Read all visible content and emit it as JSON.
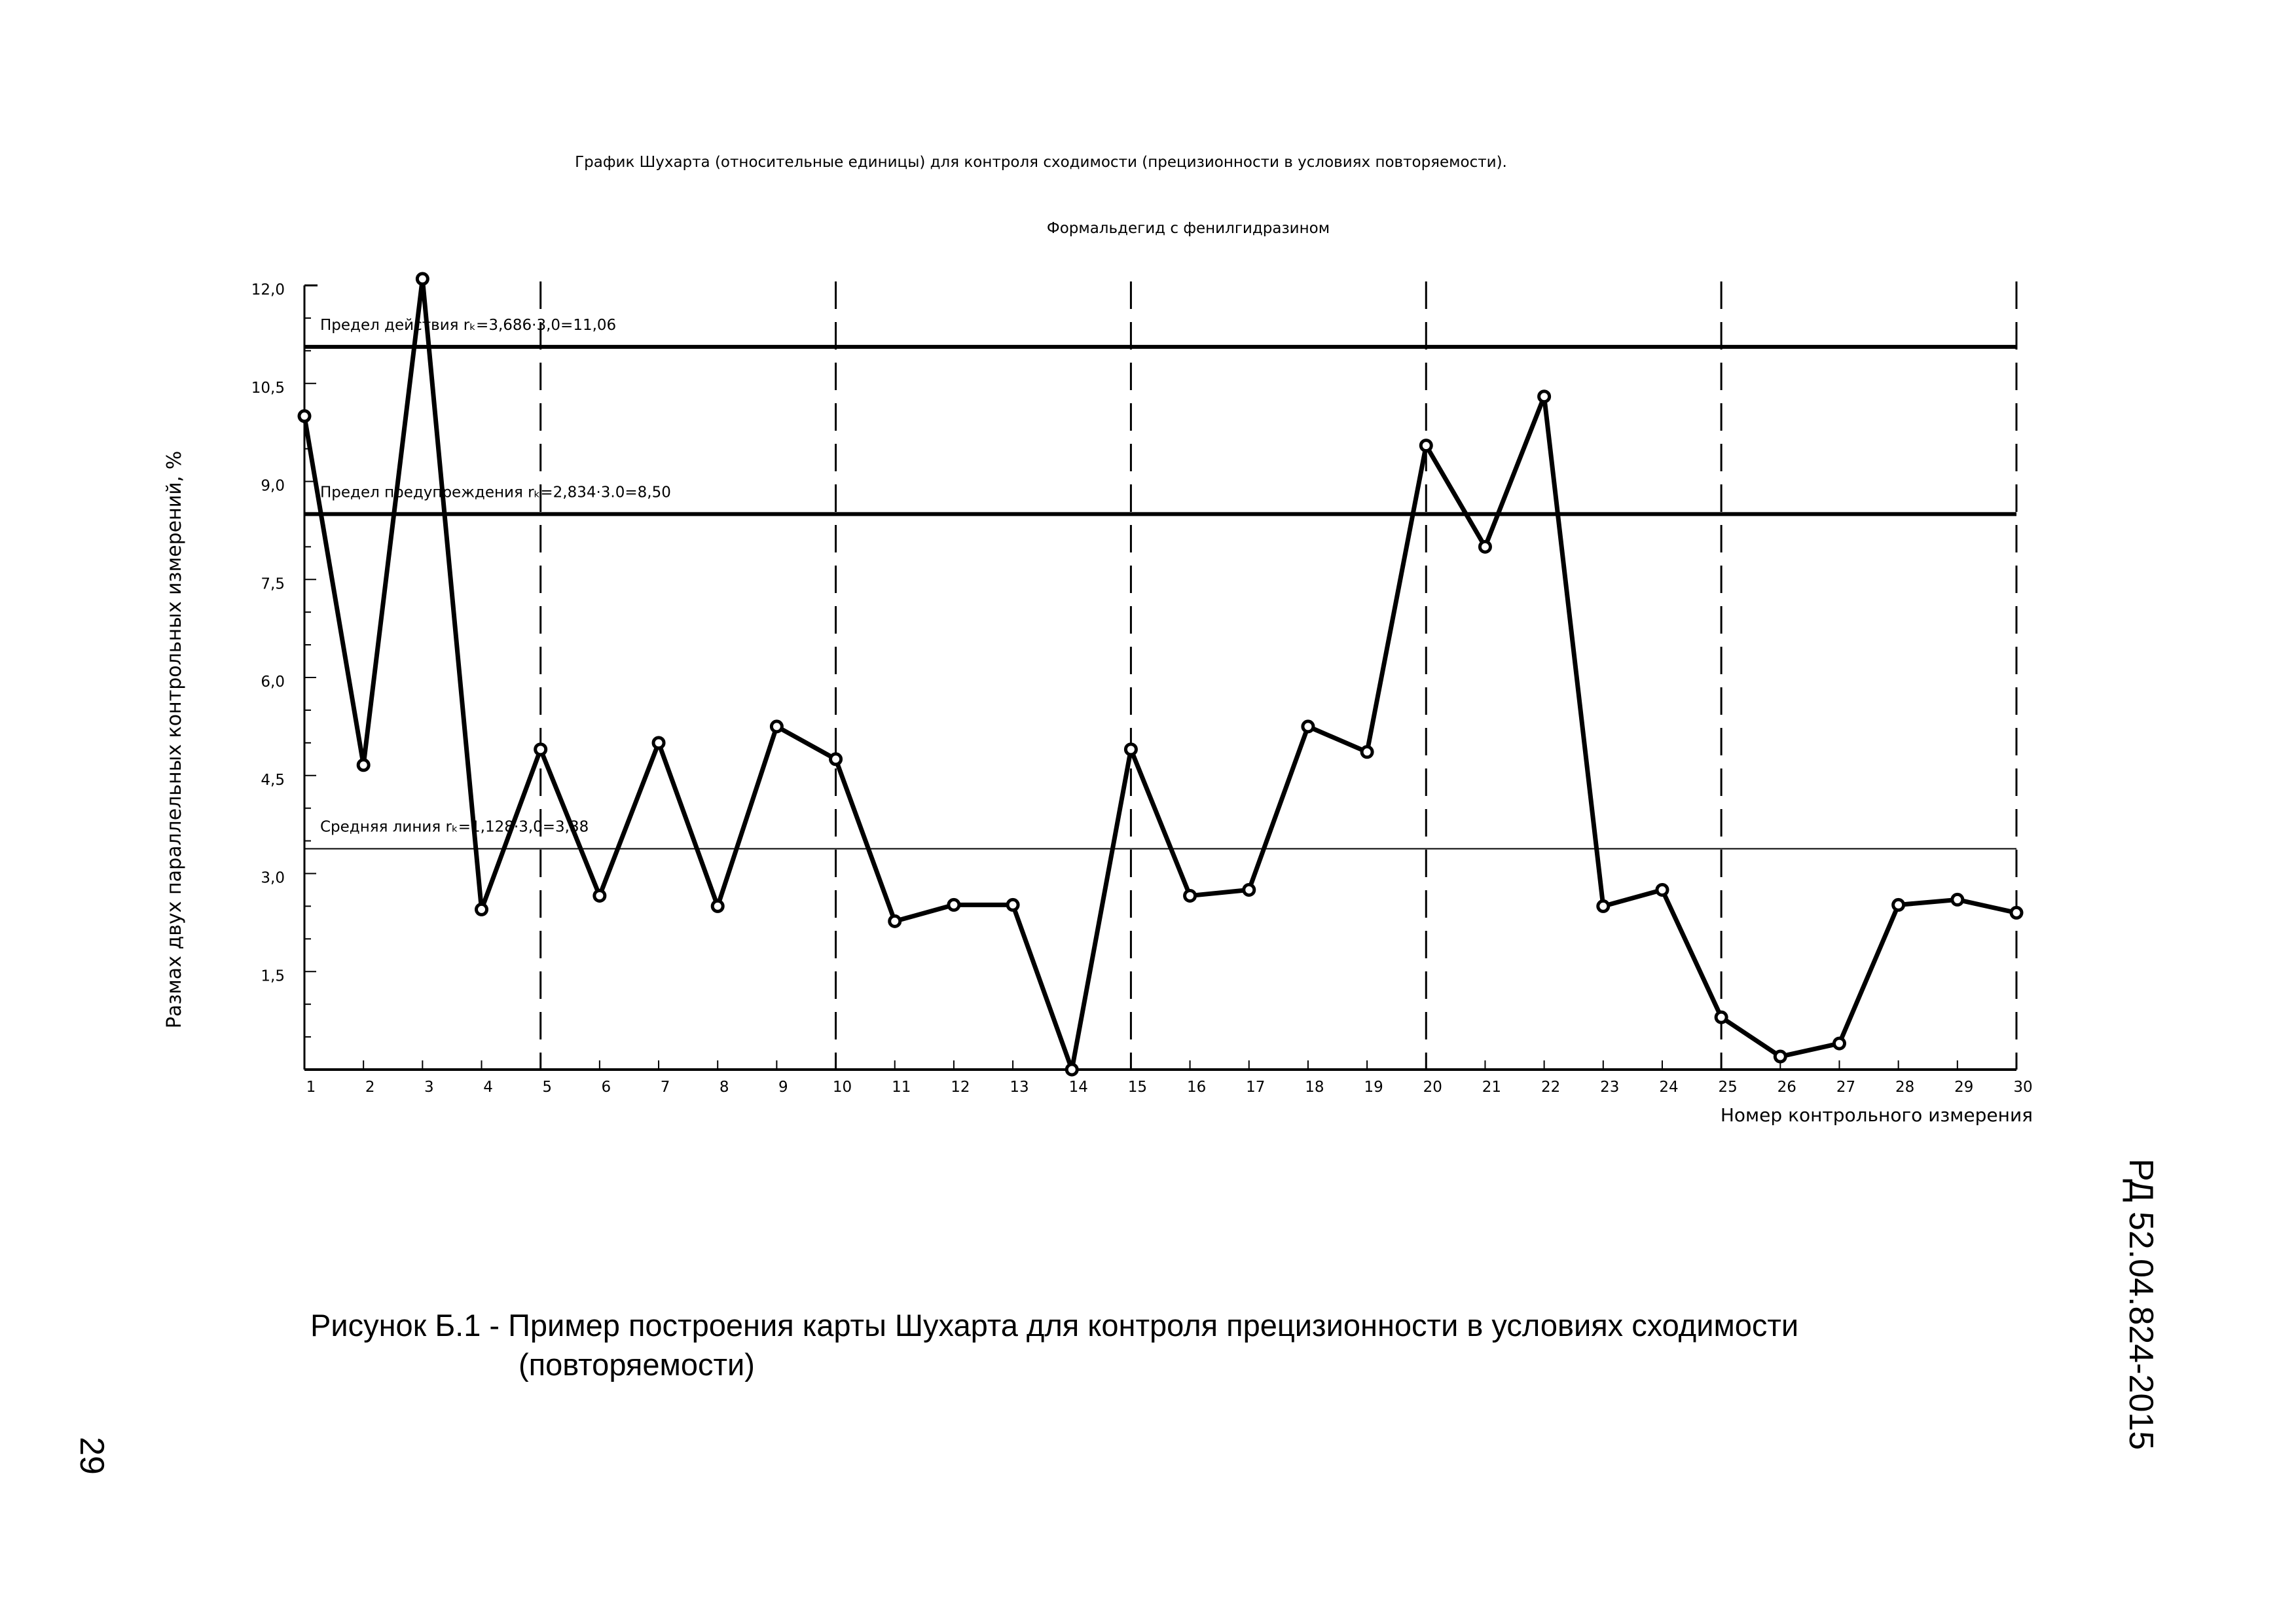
{
  "chart_data": {
    "type": "line",
    "title": "График Шухарта (относительные единицы) для контроля сходимости (прецизионности в условиях повторяемости).",
    "subtitle": "Формальдегид с фенилгидразином",
    "xlabel": "Номер контрольного измерения",
    "ylabel": "Размах двух параллельных контрольных измерений, %",
    "xlim": [
      1,
      30
    ],
    "ylim": [
      0,
      12
    ],
    "x_ticks": [
      "1",
      "2",
      "3",
      "4",
      "5",
      "6",
      "7",
      "8",
      "9",
      "10",
      "11",
      "12",
      "13",
      "14",
      "15",
      "16",
      "17",
      "18",
      "19",
      "20",
      "21",
      "22",
      "23",
      "24",
      "25",
      "26",
      "27",
      "28",
      "29",
      "30"
    ],
    "y_ticks": [
      "1,5",
      "3,0",
      "4,5",
      "6,0",
      "7,5",
      "9,0",
      "10,5",
      "12,0"
    ],
    "y_tick_values": [
      1.5,
      3.0,
      4.5,
      6.0,
      7.5,
      9.0,
      10.5,
      12.0
    ],
    "x": [
      1,
      2,
      3,
      4,
      5,
      6,
      7,
      8,
      9,
      10,
      11,
      12,
      13,
      14,
      15,
      16,
      17,
      18,
      19,
      20,
      21,
      22,
      23,
      24,
      25,
      26,
      27,
      28,
      29,
      30
    ],
    "values": [
      10.0,
      4.66,
      12.1,
      2.45,
      4.9,
      2.66,
      5.0,
      2.5,
      5.25,
      4.75,
      2.27,
      2.52,
      2.52,
      0.0,
      4.9,
      2.66,
      2.75,
      5.25,
      4.86,
      9.55,
      8.0,
      10.3,
      2.5,
      2.75,
      0.8,
      0.2,
      0.4,
      2.52,
      2.6,
      2.4
    ],
    "dashed_verticals_at": [
      5,
      10,
      15,
      20,
      25,
      30
    ],
    "reference_lines": [
      {
        "label": "Предел действия rₖ=3,686·3,0=11,06",
        "value": 11.06,
        "style": "thick"
      },
      {
        "label": "Предел предупреждения rₖ=2,834·3.0=8,50",
        "value": 8.5,
        "style": "thick"
      },
      {
        "label": "Средняя линия rₖ=1,128·3,0=3,38",
        "value": 3.38,
        "style": "thin"
      }
    ],
    "grid": false,
    "legend": "none"
  },
  "caption": {
    "line1": "Рисунок Б.1 - Пример построения карты Шухарта для контроля прецизионности в условиях сходимости",
    "line2": "(повторяемости)"
  },
  "document_code": "РД 52.04.824-2015",
  "page_number": "29"
}
